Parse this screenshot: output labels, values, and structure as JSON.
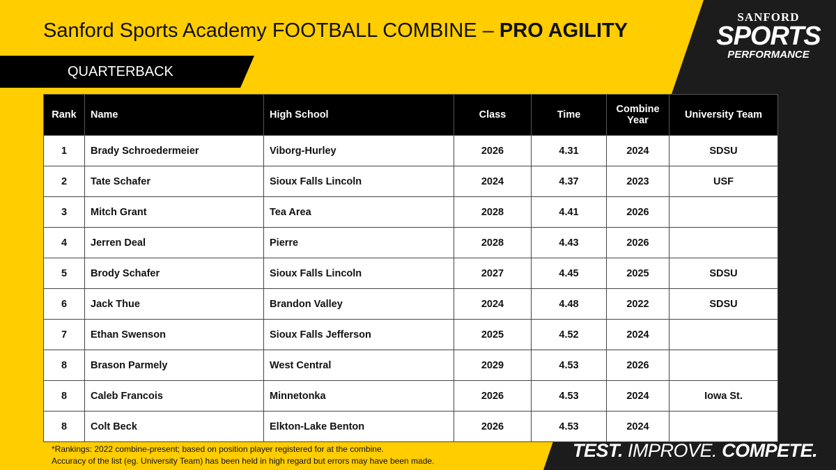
{
  "header": {
    "title": "Sanford Sports Academy FOOTBALL COMBINE – ",
    "title_bold": "PRO AGILITY",
    "position": "QUARTERBACK"
  },
  "logo": {
    "top": "SANFORD",
    "middle": "SPORTS",
    "bottom": "PERFORMANCE"
  },
  "table": {
    "columns": [
      "Rank",
      "Name",
      "High School",
      "Class",
      "Time",
      "Combine Year",
      "University Team"
    ],
    "rows": [
      [
        "1",
        "Brady Schroedermeier",
        "Viborg-Hurley",
        "2026",
        "4.31",
        "2024",
        "SDSU"
      ],
      [
        "2",
        "Tate Schafer",
        "Sioux Falls Lincoln",
        "2024",
        "4.37",
        "2023",
        "USF"
      ],
      [
        "3",
        "Mitch Grant",
        "Tea Area",
        "2028",
        "4.41",
        "2026",
        null
      ],
      [
        "4",
        "Jerren Deal",
        "Pierre",
        "2028",
        "4.43",
        "2026",
        null
      ],
      [
        "5",
        "Brody Schafer",
        "Sioux Falls Lincoln",
        "2027",
        "4.45",
        "2025",
        "SDSU"
      ],
      [
        "6",
        "Jack Thue",
        "Brandon Valley",
        "2024",
        "4.48",
        "2022",
        "SDSU"
      ],
      [
        "7",
        "Ethan Swenson",
        "Sioux Falls Jefferson",
        "2025",
        "4.52",
        "2024",
        null
      ],
      [
        "8",
        "Brason Parmely",
        "West Central",
        "2029",
        "4.53",
        "2026",
        null
      ],
      [
        "8",
        "Caleb Francois",
        "Minnetonka",
        "2026",
        "4.53",
        "2024",
        "Iowa St."
      ],
      [
        "8",
        "Colt Beck",
        "Elkton-Lake Benton",
        "2026",
        "4.53",
        "2024",
        null
      ]
    ]
  },
  "footnotes": [
    "*Rankings: 2022 combine-present; based on position player registered for at the combine.",
    "Accuracy of the list (eg. University Team) has been held in high regard but errors may have been made."
  ],
  "tagline": {
    "test": "TEST.",
    "improve": "IMPROVE.",
    "compete": "COMPETE."
  }
}
